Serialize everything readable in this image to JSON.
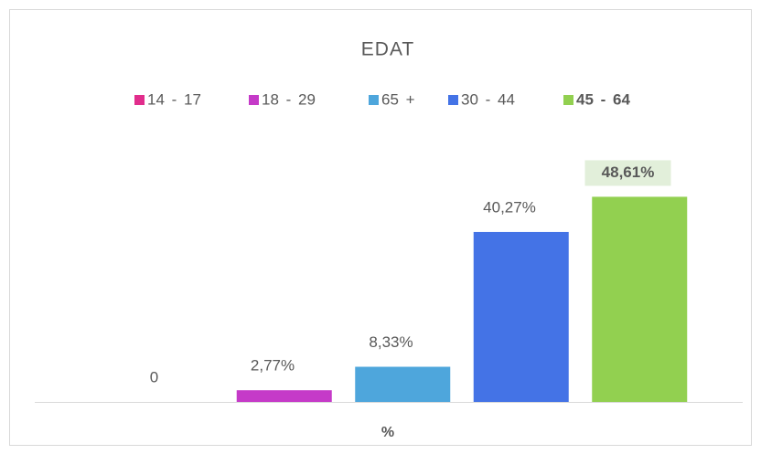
{
  "chart_data": {
    "type": "bar",
    "title": "EDAT",
    "categories": [
      "%"
    ],
    "series": [
      {
        "name": "14 - 17",
        "color": "#e12d8c",
        "values": [
          0
        ],
        "value_labels": [
          "0"
        ]
      },
      {
        "name": "18 - 29",
        "color": "#c53ac8",
        "values": [
          2.77
        ],
        "value_labels": [
          "2,77%"
        ]
      },
      {
        "name": "65 +",
        "color": "#4ea6dc",
        "values": [
          8.33
        ],
        "value_labels": [
          "8,33%"
        ]
      },
      {
        "name": "30 - 44",
        "color": "#4473e6",
        "values": [
          40.27
        ],
        "value_labels": [
          "40,27%"
        ]
      },
      {
        "name": "45 - 64",
        "color": "#92d050",
        "values": [
          48.61
        ],
        "value_labels": [
          "48,61%"
        ]
      }
    ],
    "ylim": [
      0,
      50
    ],
    "legend": "top"
  }
}
